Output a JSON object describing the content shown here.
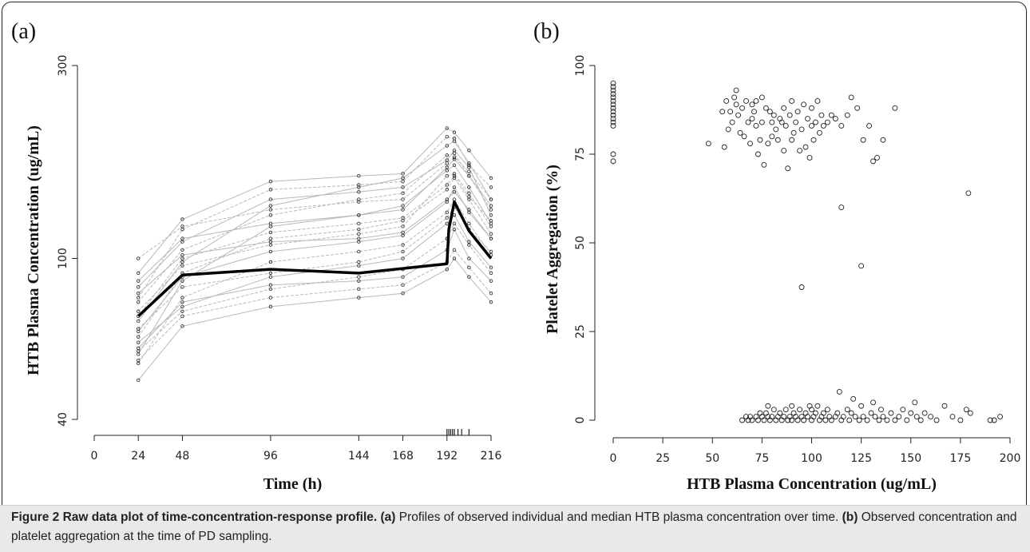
{
  "caption": {
    "label": "Figure 2",
    "title": "Raw data plot of time-concentration-response profile.",
    "a_tag": "(a)",
    "a_text": "Profiles of observed individual and median HTB plasma concentration over time.",
    "b_tag": "(b)",
    "b_text": "Observed concentration and platelet aggregation at the time of PD sampling."
  },
  "colors": {
    "median_line": "#000000",
    "individual_lines": "#b8b8b8",
    "points": "#222222",
    "frame": "#222222"
  },
  "chart_data": [
    {
      "panel": "(a)",
      "type": "line",
      "xlabel": "Time (h)",
      "ylabel": "HTB Plasma Concentration (ug/mL)",
      "xlim": [
        0,
        216
      ],
      "x_ticks": [
        0,
        24,
        48,
        96,
        144,
        168,
        192,
        216
      ],
      "y_scale": "log",
      "ylim": [
        40,
        300
      ],
      "y_ticks": [
        40,
        100,
        300
      ],
      "grid": false,
      "rug_times": [
        192,
        193,
        194,
        195,
        196,
        198,
        200,
        204
      ],
      "median": {
        "x": [
          24,
          48,
          96,
          144,
          192,
          193,
          196,
          204,
          216
        ],
        "y": [
          72,
          91,
          94,
          92,
          97,
          118,
          138,
          117,
          100
        ]
      },
      "individual_sampling_times": [
        24,
        48,
        96,
        144,
        168,
        192,
        196,
        204,
        216
      ],
      "individual_profiles": [
        [
          58,
          88,
          120,
          128,
          135,
          165,
          170,
          150,
          122
        ],
        [
          64,
          92,
          112,
          118,
          124,
          148,
          158,
          140,
          115
        ],
        [
          70,
          98,
          135,
          150,
          158,
          190,
          195,
          172,
          140
        ],
        [
          78,
          105,
          128,
          140,
          145,
          180,
          182,
          160,
          132
        ],
        [
          85,
          110,
          140,
          146,
          150,
          175,
          185,
          168,
          128
        ],
        [
          55,
          80,
          98,
          104,
          108,
          130,
          140,
          122,
          102
        ],
        [
          62,
          76,
          90,
          96,
          100,
          122,
          128,
          110,
          95
        ],
        [
          74,
          96,
          108,
          115,
          120,
          160,
          162,
          145,
          120
        ],
        [
          88,
          112,
          122,
          128,
          132,
          168,
          176,
          160,
          135
        ],
        [
          67,
          85,
          92,
          98,
          104,
          126,
          134,
          118,
          104
        ],
        [
          60,
          78,
          86,
          88,
          90,
          105,
          118,
          100,
          88
        ],
        [
          80,
          118,
          148,
          152,
          155,
          200,
          198,
          170,
          150
        ],
        [
          92,
          125,
          155,
          160,
          162,
          210,
          205,
          185,
          158
        ],
        [
          56,
          72,
          80,
          84,
          86,
          98,
          105,
          95,
          82
        ],
        [
          66,
          90,
          104,
          110,
          114,
          138,
          150,
          130,
          112
        ],
        [
          100,
          120,
          132,
          138,
          140,
          172,
          178,
          164,
          140
        ],
        [
          50,
          68,
          76,
          80,
          82,
          94,
          100,
          90,
          78
        ],
        [
          72,
          100,
          116,
          122,
          126,
          152,
          160,
          142,
          124
        ],
        [
          82,
          102,
          110,
          112,
          116,
          140,
          146,
          132,
          112
        ],
        [
          59,
          74,
          84,
          90,
          94,
          112,
          122,
          108,
          92
        ]
      ]
    },
    {
      "panel": "(b)",
      "type": "scatter",
      "xlabel": "HTB Plasma Concentration (ug/mL)",
      "ylabel": "Platelet Aggregation (%)",
      "xlim": [
        0,
        200
      ],
      "x_ticks": [
        0,
        25,
        50,
        75,
        100,
        125,
        150,
        175,
        200
      ],
      "ylim": [
        0,
        100
      ],
      "y_ticks": [
        0,
        25,
        50,
        75,
        100
      ],
      "grid": false,
      "baseline_group": {
        "x": [
          0,
          0,
          0,
          0,
          0,
          0,
          0,
          0,
          0,
          0,
          0,
          0,
          0,
          0,
          0
        ],
        "y": [
          95,
          94,
          93,
          92,
          91,
          90,
          89,
          88,
          87,
          86,
          85,
          84,
          83,
          75,
          73
        ]
      },
      "high_aggregation_group": {
        "x": [
          48,
          55,
          56,
          57,
          58,
          59,
          60,
          61,
          62,
          62,
          63,
          64,
          65,
          66,
          67,
          68,
          69,
          70,
          70,
          71,
          72,
          72,
          73,
          74,
          75,
          75,
          76,
          77,
          78,
          79,
          80,
          80,
          81,
          82,
          83,
          84,
          85,
          86,
          86,
          87,
          88,
          89,
          90,
          90,
          91,
          92,
          93,
          94,
          95,
          96,
          97,
          98,
          99,
          100,
          100,
          101,
          102,
          103,
          104,
          105,
          106,
          108,
          110,
          112,
          115,
          118,
          120,
          123,
          126,
          129,
          131,
          133,
          136,
          142
        ],
        "y": [
          78,
          87,
          77,
          90,
          82,
          87,
          84,
          91,
          89,
          93,
          86,
          81,
          88,
          80,
          90,
          84,
          78,
          85,
          89,
          87,
          90,
          83,
          75,
          79,
          91,
          84,
          72,
          88,
          78,
          87,
          80,
          84,
          86,
          82,
          79,
          85,
          84,
          88,
          76,
          83,
          71,
          86,
          79,
          90,
          81,
          84,
          87,
          76,
          82,
          89,
          77,
          85,
          74,
          88,
          83,
          79,
          84,
          90,
          81,
          86,
          83,
          84,
          86,
          85,
          83,
          86,
          91,
          88,
          79,
          83,
          73,
          74,
          79,
          88
        ]
      },
      "outliers": {
        "x": [
          95,
          115,
          125,
          179
        ],
        "y": [
          37.5,
          60,
          43.5,
          64
        ]
      },
      "low_aggregation_group": {
        "x": [
          65,
          67,
          68,
          69,
          70,
          72,
          73,
          74,
          75,
          76,
          77,
          78,
          78,
          79,
          80,
          81,
          82,
          83,
          84,
          85,
          86,
          87,
          88,
          89,
          90,
          90,
          91,
          92,
          93,
          94,
          95,
          96,
          97,
          98,
          99,
          100,
          100,
          101,
          102,
          103,
          104,
          105,
          106,
          107,
          108,
          109,
          110,
          112,
          113,
          114,
          115,
          116,
          118,
          119,
          120,
          121,
          122,
          124,
          125,
          126,
          128,
          130,
          131,
          132,
          134,
          135,
          136,
          138,
          140,
          142,
          144,
          146,
          148,
          150,
          152,
          153,
          155,
          157,
          160,
          163,
          167,
          171,
          175,
          178,
          180,
          190,
          192,
          195
        ],
        "y": [
          0,
          1,
          0,
          1,
          0,
          1,
          0,
          2,
          1,
          0,
          2,
          1,
          4,
          0,
          1,
          3,
          0,
          1,
          2,
          0,
          1,
          3,
          0,
          1,
          0,
          4,
          2,
          1,
          0,
          3,
          1,
          0,
          2,
          1,
          4,
          0,
          3,
          1,
          2,
          4,
          0,
          1,
          2,
          0,
          3,
          1,
          0,
          1,
          2,
          8,
          0,
          1,
          3,
          0,
          2,
          6,
          1,
          0,
          4,
          1,
          0,
          2,
          5,
          1,
          0,
          3,
          1,
          0,
          2,
          0,
          1,
          3,
          0,
          2,
          5,
          1,
          0,
          2,
          1,
          0,
          4,
          1,
          0,
          3,
          2,
          0,
          0,
          1
        ]
      }
    }
  ]
}
